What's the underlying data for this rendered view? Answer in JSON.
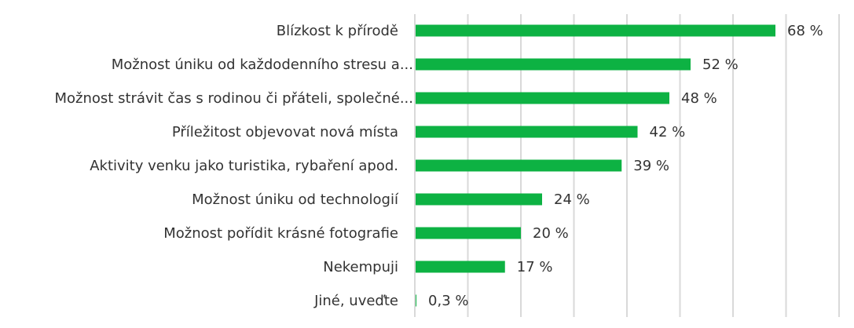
{
  "chart_data": {
    "type": "bar",
    "orientation": "horizontal",
    "title": "",
    "xlabel": "",
    "ylabel": "",
    "xlim": [
      0,
      80
    ],
    "grid": true,
    "bar_color": "#0db243",
    "categories": [
      "Blízkost k přírodě",
      "Možnost úniku od každodenního stresu a...",
      "Možnost strávit čas s rodinou či přáteli, společné...",
      "Příležitost objevovat nová místa",
      "Aktivity venku jako turistika, rybaření apod.",
      "Možnost úniku od technologií",
      "Možnost pořídit krásné fotografie",
      "Nekempuji",
      "Jiné, uveďte"
    ],
    "values": [
      68,
      52,
      48,
      42,
      39,
      24,
      20,
      17,
      0.3
    ],
    "value_labels": [
      "68 %",
      "52 %",
      "48 %",
      "42 %",
      "39 %",
      "24 %",
      "20 %",
      "17 %",
      "0,3 %"
    ]
  }
}
